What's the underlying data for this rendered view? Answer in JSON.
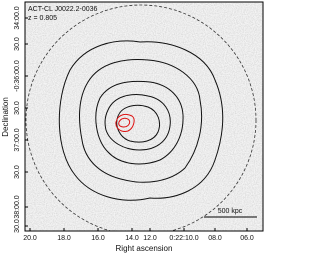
{
  "annotation": {
    "name": "ACT-CL J0022.2-0036",
    "redshift": "z = 0.805"
  },
  "scale_bar": "500 kpc",
  "x_axis": {
    "label": "Right ascension",
    "ticks": [
      "20.0",
      "18.0",
      "16.0",
      "14.0",
      "12.0",
      "0:22:10.0",
      "08.0",
      "06.0"
    ]
  },
  "y_axis": {
    "label": "Declination",
    "ticks": [
      "34:00.0",
      "30.0",
      "-0:36:00.0",
      "30.0",
      "37:00.0",
      "30.0",
      "38:00.0",
      "30.0"
    ]
  }
}
